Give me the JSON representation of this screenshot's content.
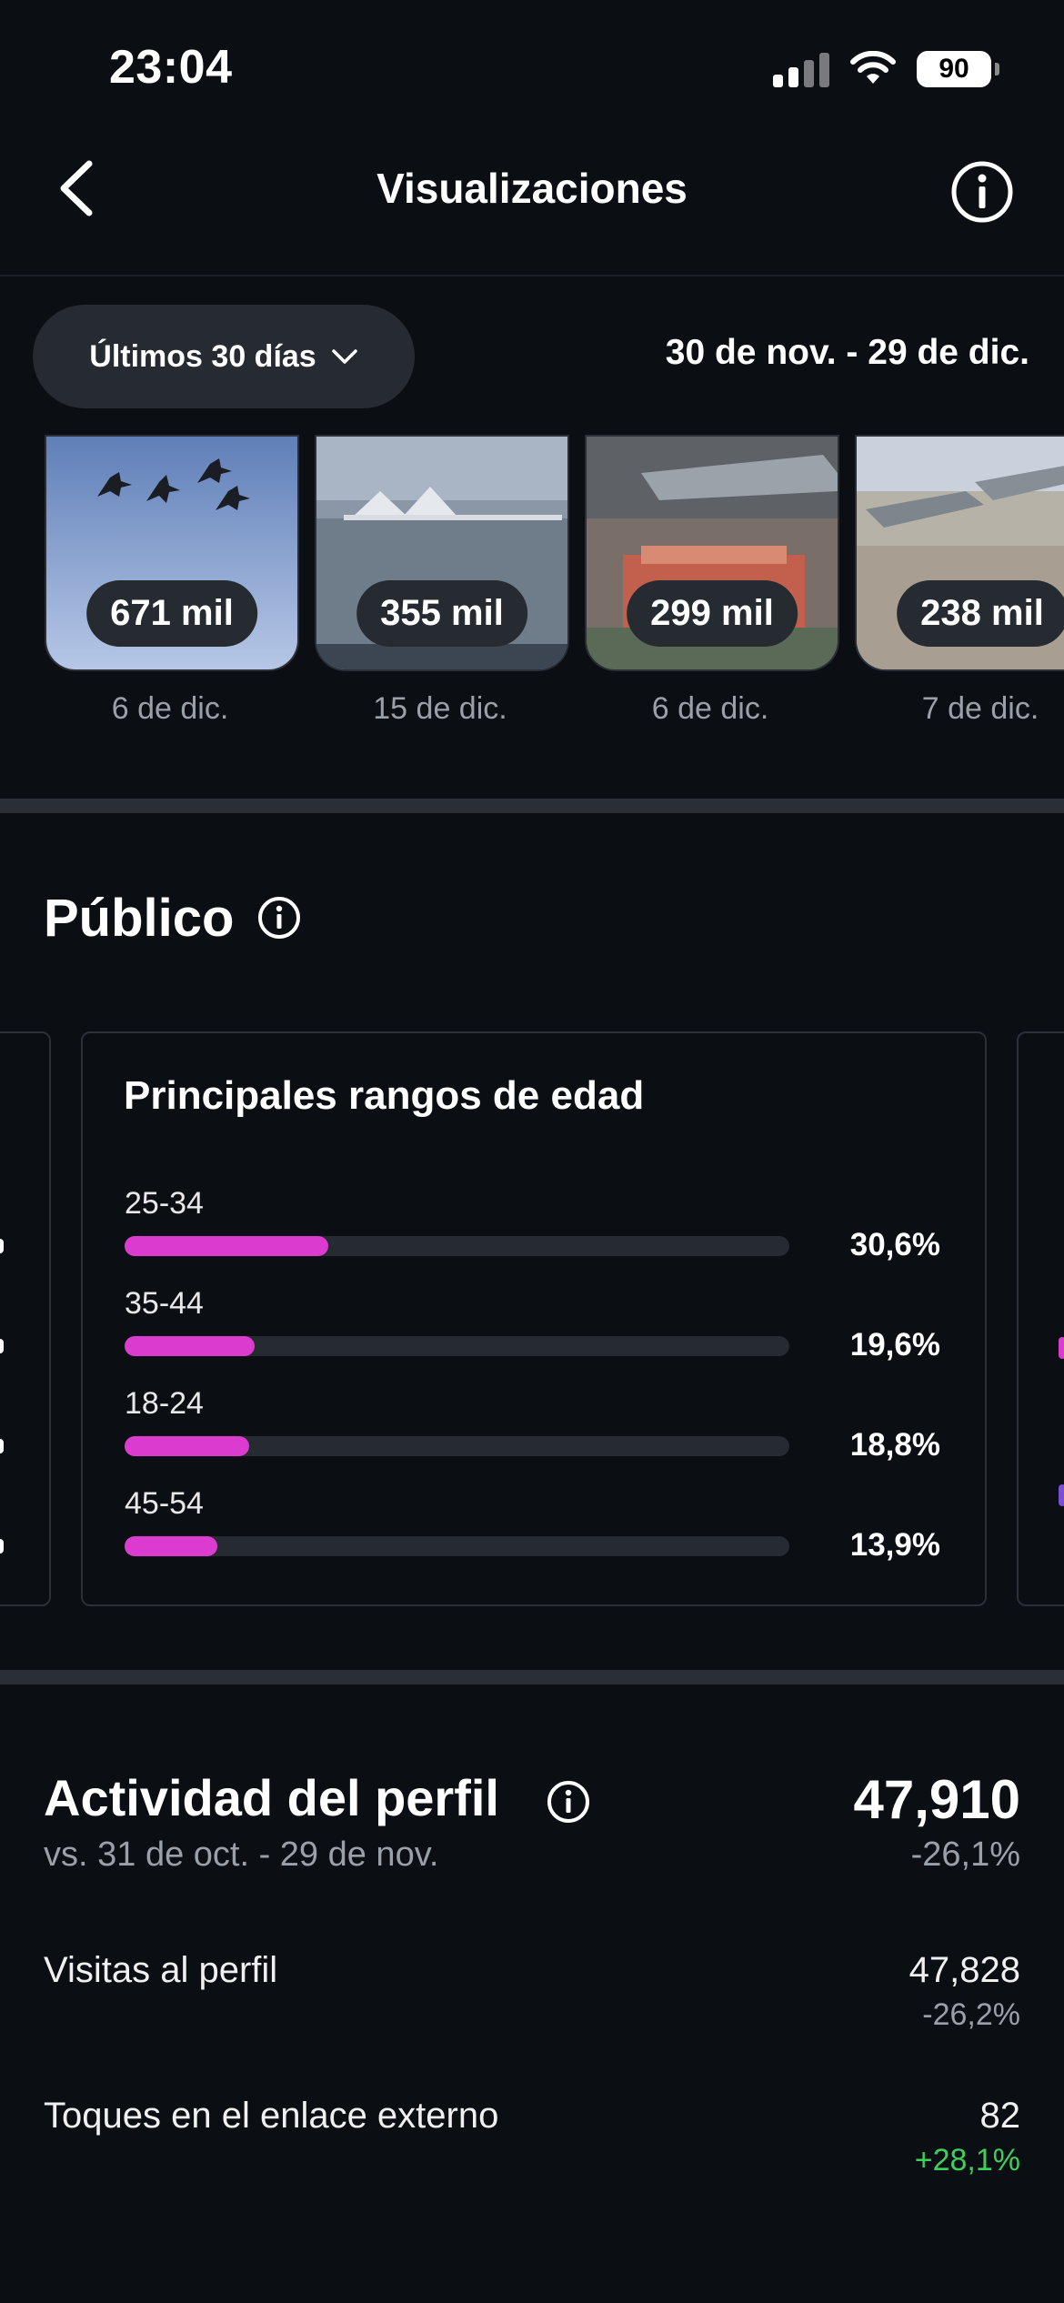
{
  "status_bar": {
    "time": "23:04",
    "battery": "90"
  },
  "header": {
    "title": "Visualizaciones"
  },
  "filter": {
    "period_label": "Últimos 30 días",
    "date_range": "30 de nov. - 29 de dic."
  },
  "thumbnails": [
    {
      "views": "671 mil",
      "date": "6 de dic."
    },
    {
      "views": "355 mil",
      "date": "15 de dic."
    },
    {
      "views": "299 mil",
      "date": "6 de dic."
    },
    {
      "views": "238 mil",
      "date": "7 de dic."
    }
  ],
  "audience": {
    "title": "Público",
    "card_title": "Principales rangos de edad",
    "ranges": [
      {
        "label": "25-34",
        "percent_text": "30,6%",
        "fill_fraction": 0.306
      },
      {
        "label": "35-44",
        "percent_text": "19,6%",
        "fill_fraction": 0.196
      },
      {
        "label": "18-24",
        "percent_text": "18,8%",
        "fill_fraction": 0.188
      },
      {
        "label": "45-54",
        "percent_text": "13,9%",
        "fill_fraction": 0.139
      }
    ]
  },
  "profile_activity": {
    "title": "Actividad del perfil",
    "comparison": "vs. 31 de oct. - 29 de nov.",
    "total": "47,910",
    "total_delta": "-26,1%",
    "rows": [
      {
        "label": "Visitas al perfil",
        "value": "47,828",
        "delta": "-26,2%"
      },
      {
        "label": "Toques en el enlace externo",
        "value": "82",
        "delta": "+28,1%"
      }
    ]
  },
  "colors": {
    "accent_bar": "#dc3bd0",
    "positive": "#3ecf5d",
    "muted": "#9aa0a8"
  }
}
